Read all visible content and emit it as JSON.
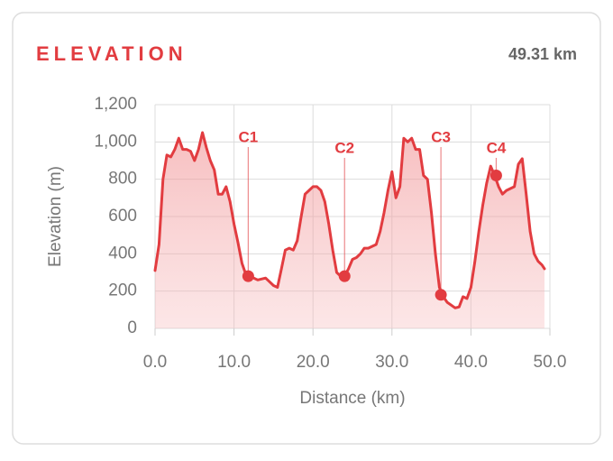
{
  "header": {
    "title": "ELEVATION",
    "distance": "49.31 km"
  },
  "chart_data": {
    "type": "line",
    "x_label": "Distance (km)",
    "y_label": "Elevation (m)",
    "x": [
      0,
      0.5,
      1,
      1.5,
      2,
      2.5,
      3,
      3.5,
      4,
      4.5,
      5,
      5.5,
      6,
      6.5,
      7,
      7.5,
      8,
      8.5,
      9,
      9.5,
      10,
      10.5,
      11,
      11.5,
      12,
      13,
      14,
      14.5,
      15,
      15.5,
      16,
      16.5,
      17,
      17.5,
      18,
      18.5,
      19,
      19.5,
      20,
      20.5,
      21,
      21.5,
      22,
      22.5,
      23,
      23.5,
      24,
      24.5,
      25,
      25.5,
      26,
      26.5,
      27,
      28,
      28.5,
      29,
      29.5,
      30,
      30.5,
      31,
      31.5,
      32,
      32.5,
      33,
      33.5,
      34,
      34.5,
      35,
      35.5,
      36,
      36.5,
      37,
      38,
      38.5,
      39,
      39.5,
      40,
      40.5,
      41,
      41.5,
      42,
      42.5,
      43,
      43.5,
      44,
      44.5,
      45,
      45.5,
      46,
      46.5,
      47,
      47.5,
      48,
      48.5,
      49,
      49.31
    ],
    "series": [
      {
        "name": "Elevation",
        "color": "#e23c40",
        "values": [
          310,
          450,
          800,
          930,
          920,
          960,
          1020,
          960,
          960,
          950,
          900,
          960,
          1050,
          970,
          900,
          850,
          720,
          720,
          760,
          680,
          560,
          460,
          350,
          290,
          280,
          260,
          270,
          250,
          230,
          220,
          320,
          420,
          430,
          420,
          470,
          600,
          720,
          740,
          760,
          760,
          740,
          680,
          560,
          420,
          300,
          280,
          280,
          320,
          370,
          380,
          400,
          430,
          430,
          450,
          520,
          620,
          740,
          840,
          700,
          760,
          1020,
          1000,
          1020,
          960,
          960,
          820,
          800,
          620,
          400,
          220,
          170,
          140,
          110,
          115,
          170,
          160,
          220,
          360,
          520,
          660,
          780,
          870,
          820,
          760,
          720,
          740,
          750,
          760,
          880,
          910,
          720,
          520,
          400,
          360,
          340,
          320
        ]
      }
    ],
    "checkpoints": [
      {
        "name": "C1",
        "x": 11.8,
        "y": 280
      },
      {
        "name": "C2",
        "x": 24,
        "y": 280
      },
      {
        "name": "C3",
        "x": 36.2,
        "y": 180
      },
      {
        "name": "C4",
        "x": 43.2,
        "y": 820
      }
    ],
    "xlim": [
      0,
      50
    ],
    "ylim": [
      0,
      1200
    ],
    "xticks": [
      {
        "value": 0,
        "label": "0.0"
      },
      {
        "value": 10,
        "label": "10.0"
      },
      {
        "value": 20,
        "label": "20.0"
      },
      {
        "value": 30,
        "label": "30.0"
      },
      {
        "value": 40,
        "label": "40.0"
      },
      {
        "value": 50,
        "label": "50.0"
      }
    ],
    "yticks": [
      0,
      200,
      400,
      600,
      800,
      {
        "value": 1000,
        "label": "1,000"
      },
      {
        "value": 1200,
        "label": "1,200"
      }
    ],
    "grid": true
  }
}
